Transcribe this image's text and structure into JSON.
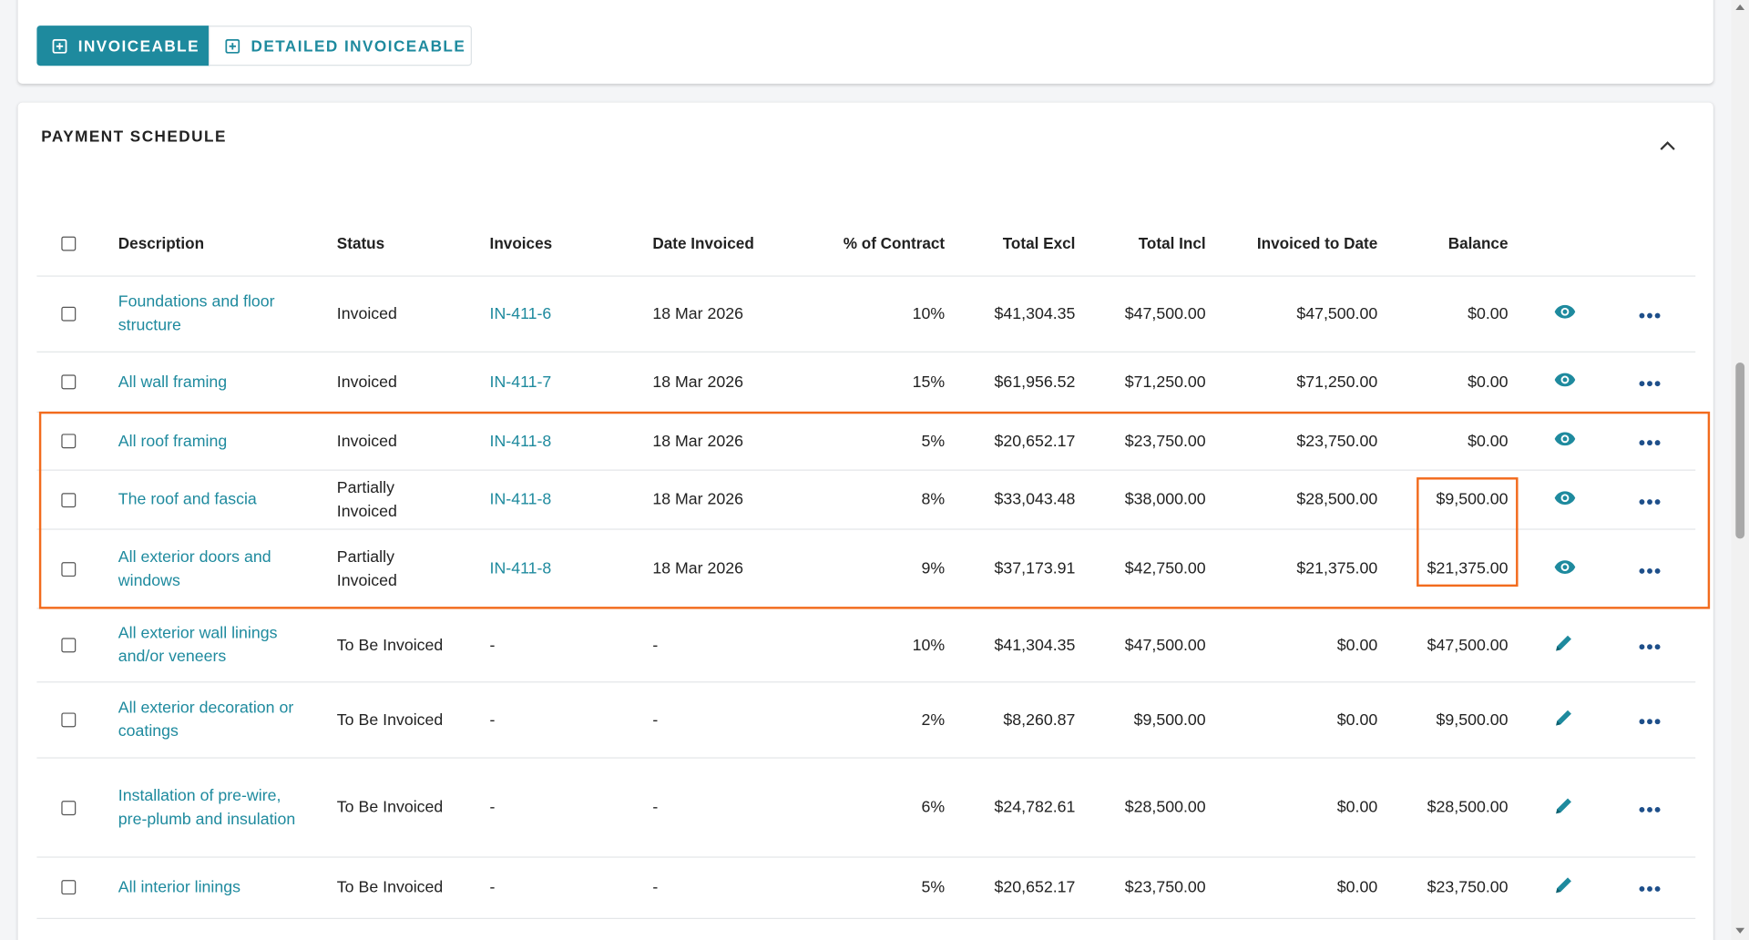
{
  "toolbar": {
    "buttons": [
      "INVOICEABLE",
      "DETAILED INVOICEABLE"
    ]
  },
  "section": {
    "title": "PAYMENT SCHEDULE"
  },
  "table": {
    "columns": [
      "Description",
      "Status",
      "Invoices",
      "Date Invoiced",
      "% of Contract",
      "Total Excl",
      "Total Incl",
      "Invoiced to Date",
      "Balance"
    ],
    "rows": [
      [
        "Foundations and floor structure",
        "Invoiced",
        "IN-411-6",
        "18 Mar 2026",
        "10%",
        "$41,304.35",
        "$47,500.00",
        "$47,500.00",
        "$0.00"
      ],
      [
        "All wall framing",
        "Invoiced",
        "IN-411-7",
        "18 Mar 2026",
        "15%",
        "$61,956.52",
        "$71,250.00",
        "$71,250.00",
        "$0.00"
      ],
      [
        "All roof framing",
        "Invoiced",
        "IN-411-8",
        "18 Mar 2026",
        "5%",
        "$20,652.17",
        "$23,750.00",
        "$23,750.00",
        "$0.00"
      ],
      [
        "The roof and fascia",
        "Partially Invoiced",
        "IN-411-8",
        "18 Mar 2026",
        "8%",
        "$33,043.48",
        "$38,000.00",
        "$28,500.00",
        "$9,500.00"
      ],
      [
        "All exterior doors and windows",
        "Partially Invoiced",
        "IN-411-8",
        "18 Mar 2026",
        "9%",
        "$37,173.91",
        "$42,750.00",
        "$21,375.00",
        "$21,375.00"
      ],
      [
        "All exterior wall linings and/or veneers",
        "To Be Invoiced",
        "-",
        "-",
        "10%",
        "$41,304.35",
        "$47,500.00",
        "$0.00",
        "$47,500.00"
      ],
      [
        "All exterior decoration or coatings",
        "To Be Invoiced",
        "-",
        "-",
        "2%",
        "$8,260.87",
        "$9,500.00",
        "$0.00",
        "$9,500.00"
      ],
      [
        "Installation of pre-wire, pre-plumb and insulation",
        "To Be Invoiced",
        "-",
        "-",
        "6%",
        "$24,782.61",
        "$28,500.00",
        "$0.00",
        "$28,500.00"
      ],
      [
        "All interior linings",
        "To Be Invoiced",
        "-",
        "-",
        "5%",
        "$20,652.17",
        "$23,750.00",
        "$0.00",
        "$23,750.00"
      ]
    ]
  }
}
